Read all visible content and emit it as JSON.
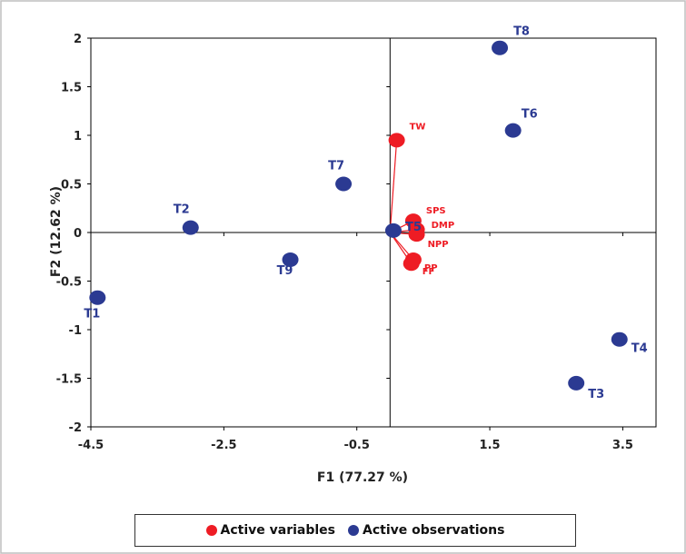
{
  "colors": {
    "variables": "#ee1c24",
    "observations": "#2b3a92",
    "axis": "#000000",
    "frame": "#bfbfbf"
  },
  "chart_data": {
    "type": "scatter",
    "xlabel": "F1 (77.27 %)",
    "ylabel": "F2 (12.62 %)",
    "xlim": [
      -4.5,
      4.0
    ],
    "ylim": [
      -2,
      2
    ],
    "x_ticks": [
      "-4.5",
      "-2.5",
      "-0.5",
      "1.5",
      "3.5"
    ],
    "y_ticks": [
      "2",
      "1.5",
      "1",
      "0.5",
      "0",
      "-0.5",
      "-1",
      "-1.5",
      "-2"
    ],
    "grid": false,
    "legend_position": "bottom",
    "series": [
      {
        "name": "Active variables",
        "color": "#ee1c24",
        "points": [
          {
            "label": "TW",
            "x": 0.1,
            "y": 0.95
          },
          {
            "label": "SPS",
            "x": 0.35,
            "y": 0.12
          },
          {
            "label": "DMP",
            "x": 0.4,
            "y": 0.03
          },
          {
            "label": "NPP",
            "x": 0.4,
            "y": -0.02
          },
          {
            "label": "PP",
            "x": 0.35,
            "y": -0.28
          },
          {
            "label": "FF",
            "x": 0.32,
            "y": -0.32
          }
        ]
      },
      {
        "name": "Active observations",
        "color": "#2b3a92",
        "points": [
          {
            "label": "T1",
            "x": -4.4,
            "y": -0.67
          },
          {
            "label": "T2",
            "x": -3.0,
            "y": 0.05
          },
          {
            "label": "T3",
            "x": 2.8,
            "y": -1.55
          },
          {
            "label": "T4",
            "x": 3.45,
            "y": -1.1
          },
          {
            "label": "T5",
            "x": 0.05,
            "y": 0.02
          },
          {
            "label": "T6",
            "x": 1.85,
            "y": 1.05
          },
          {
            "label": "T7",
            "x": -0.7,
            "y": 0.5
          },
          {
            "label": "T8",
            "x": 1.65,
            "y": 1.9
          },
          {
            "label": "T9",
            "x": -1.5,
            "y": -0.28
          }
        ]
      }
    ]
  },
  "legend": {
    "variables_label": "Active variables",
    "observations_label": "Active observations"
  }
}
